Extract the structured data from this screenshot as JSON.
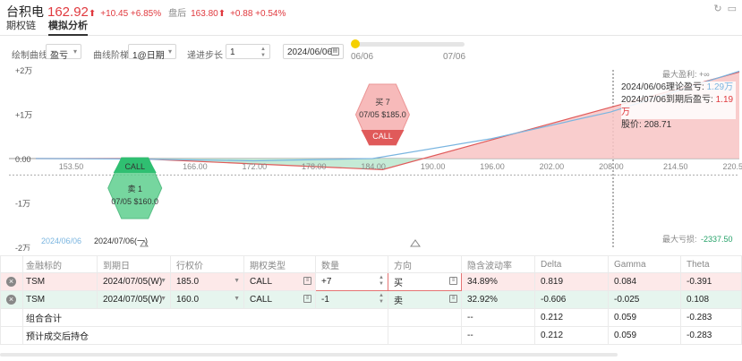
{
  "header": {
    "title": "台积电",
    "price": "162.92",
    "price_arrow": "⬆",
    "change": "+10.45 +6.85%",
    "post_label": "盘后",
    "post_price": "163.80⬆",
    "post_change": "+0.88 +0.54%"
  },
  "tabs": [
    {
      "label": "期权链",
      "active": false
    },
    {
      "label": "模拟分析",
      "active": true
    }
  ],
  "controls": {
    "curve_label": "绘制曲线",
    "curve_value": "盈亏",
    "step_label": "曲线阶梯",
    "step_value": "1@日期",
    "advance_label": "递进步长",
    "advance_value": "1",
    "date_value": "2024/06/06",
    "slider_start": "06/06",
    "slider_end": "07/06"
  },
  "chart_data": {
    "type": "line",
    "xlabel": "",
    "ylabel": "",
    "x_ticks": [
      "153.50",
      "160.00",
      "166.00",
      "172.00",
      "178.00",
      "184.00",
      "190.00",
      "196.00",
      "202.00",
      "208.00",
      "214.50",
      "220.5"
    ],
    "y_ticks": [
      "+2万",
      "+1万",
      "0.00",
      "-1万",
      "-2万"
    ],
    "xlim": [
      150,
      221
    ],
    "ylim": [
      -20000,
      20000
    ],
    "series": [
      {
        "x": [
          150,
          160,
          185,
          221
        ],
        "y": [
          0,
          0,
          -2500,
          19500
        ],
        "color": "#e05a5a"
      },
      {
        "x": [
          150,
          160,
          172,
          184,
          196,
          208,
          221
        ],
        "y": [
          0,
          -100,
          -500,
          0,
          4500,
          10500,
          19700
        ],
        "color": "#7ab5e0"
      }
    ],
    "max_profit_label": "最大盈利: +∞",
    "max_loss_label": "最大亏损:",
    "max_loss_value": "-2337.50",
    "current_price_line": 162.92,
    "bubbles": [
      {
        "title": "买 7",
        "detail": "07/05 $185.0",
        "tag": "CALL",
        "color": "#f5a3a3",
        "strike": 185
      },
      {
        "title": "卖 1",
        "detail": "07/05 $160.0",
        "tag": "CALL",
        "color": "#5fcf8f",
        "strike": 160
      }
    ],
    "legend_dates": [
      "2024/06/06",
      "2024/07/06(一)"
    ]
  },
  "info": {
    "row1_label": "2024/06/06理论盈亏:",
    "row1_value": "1.29万",
    "row2_label": "2024/07/06到期后盈亏:",
    "row2_value": "1.19万",
    "row3_label": "股价:",
    "row3_value": "208.71"
  },
  "table": {
    "headers": [
      "金融标的",
      "到期日",
      "行权价",
      "期权类型",
      "数量",
      "方向",
      "隐含波动率",
      "Delta",
      "Gamma",
      "Theta"
    ],
    "rows": [
      {
        "symbol": "TSM",
        "expiry": "2024/07/05(W)",
        "strike": "185.0",
        "type": "CALL",
        "qty": "+7",
        "dir": "买",
        "iv": "34.89%",
        "delta": "0.819",
        "gamma": "0.084",
        "theta": "-0.391"
      },
      {
        "symbol": "TSM",
        "expiry": "2024/07/05(W)",
        "strike": "160.0",
        "type": "CALL",
        "qty": "-1",
        "dir": "卖",
        "iv": "32.92%",
        "delta": "-0.606",
        "gamma": "-0.025",
        "theta": "0.108"
      }
    ],
    "summary": [
      {
        "label": "组合合计",
        "iv": "--",
        "delta": "0.212",
        "gamma": "0.059",
        "theta": "-0.283"
      },
      {
        "label": "预计成交后持仓",
        "iv": "--",
        "delta": "0.212",
        "gamma": "0.059",
        "theta": "-0.283"
      }
    ]
  }
}
